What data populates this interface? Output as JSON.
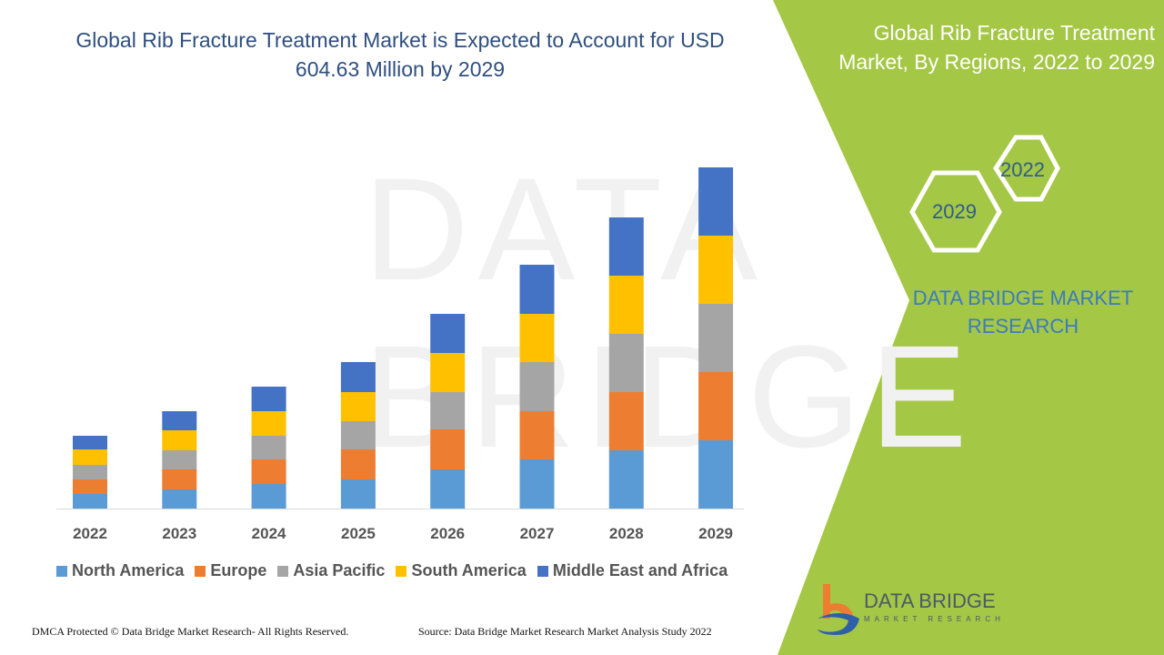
{
  "title": "Global Rib Fracture Treatment Market is Expected to Account for USD 604.63 Million by 2029",
  "side_title": "Global Rib Fracture Treatment Market, By Regions, 2022 to 2029",
  "hex_labels": [
    "2022",
    "2029"
  ],
  "brand": "DATA BRIDGE MARKET RESEARCH",
  "logo": {
    "name": "DATA BRIDGE",
    "sub": "MARKET RESEARCH"
  },
  "footer_left": "DMCA Protected © Data Bridge Market Research- All Rights Reserved.",
  "footer_right": "Source: Data Bridge Market Research Market Analysis Study 2022",
  "colors": {
    "green": "#a4c745",
    "title": "#2f4f7f"
  },
  "chart_data": {
    "type": "bar",
    "stacked": true,
    "categories": [
      "2022",
      "2023",
      "2024",
      "2025",
      "2026",
      "2027",
      "2028",
      "2029"
    ],
    "legend_position": "bottom",
    "grid": false,
    "series": [
      {
        "name": "North America",
        "color": "#5b9bd5",
        "values": [
          16,
          21,
          27,
          32,
          43,
          54,
          64,
          75
        ]
      },
      {
        "name": "Europe",
        "color": "#ed7d31",
        "values": [
          16,
          22,
          27,
          33,
          44,
          53,
          64,
          75
        ]
      },
      {
        "name": "Asia Pacific",
        "color": "#a5a5a5",
        "values": [
          16,
          21,
          26,
          31,
          41,
          54,
          64,
          75
        ]
      },
      {
        "name": "South America",
        "color": "#ffc000",
        "values": [
          17,
          22,
          27,
          32,
          43,
          53,
          64,
          75
        ]
      },
      {
        "name": "Middle East and Africa",
        "color": "#4472c4",
        "values": [
          15,
          21,
          27,
          33,
          43,
          54,
          64,
          75
        ]
      }
    ]
  }
}
